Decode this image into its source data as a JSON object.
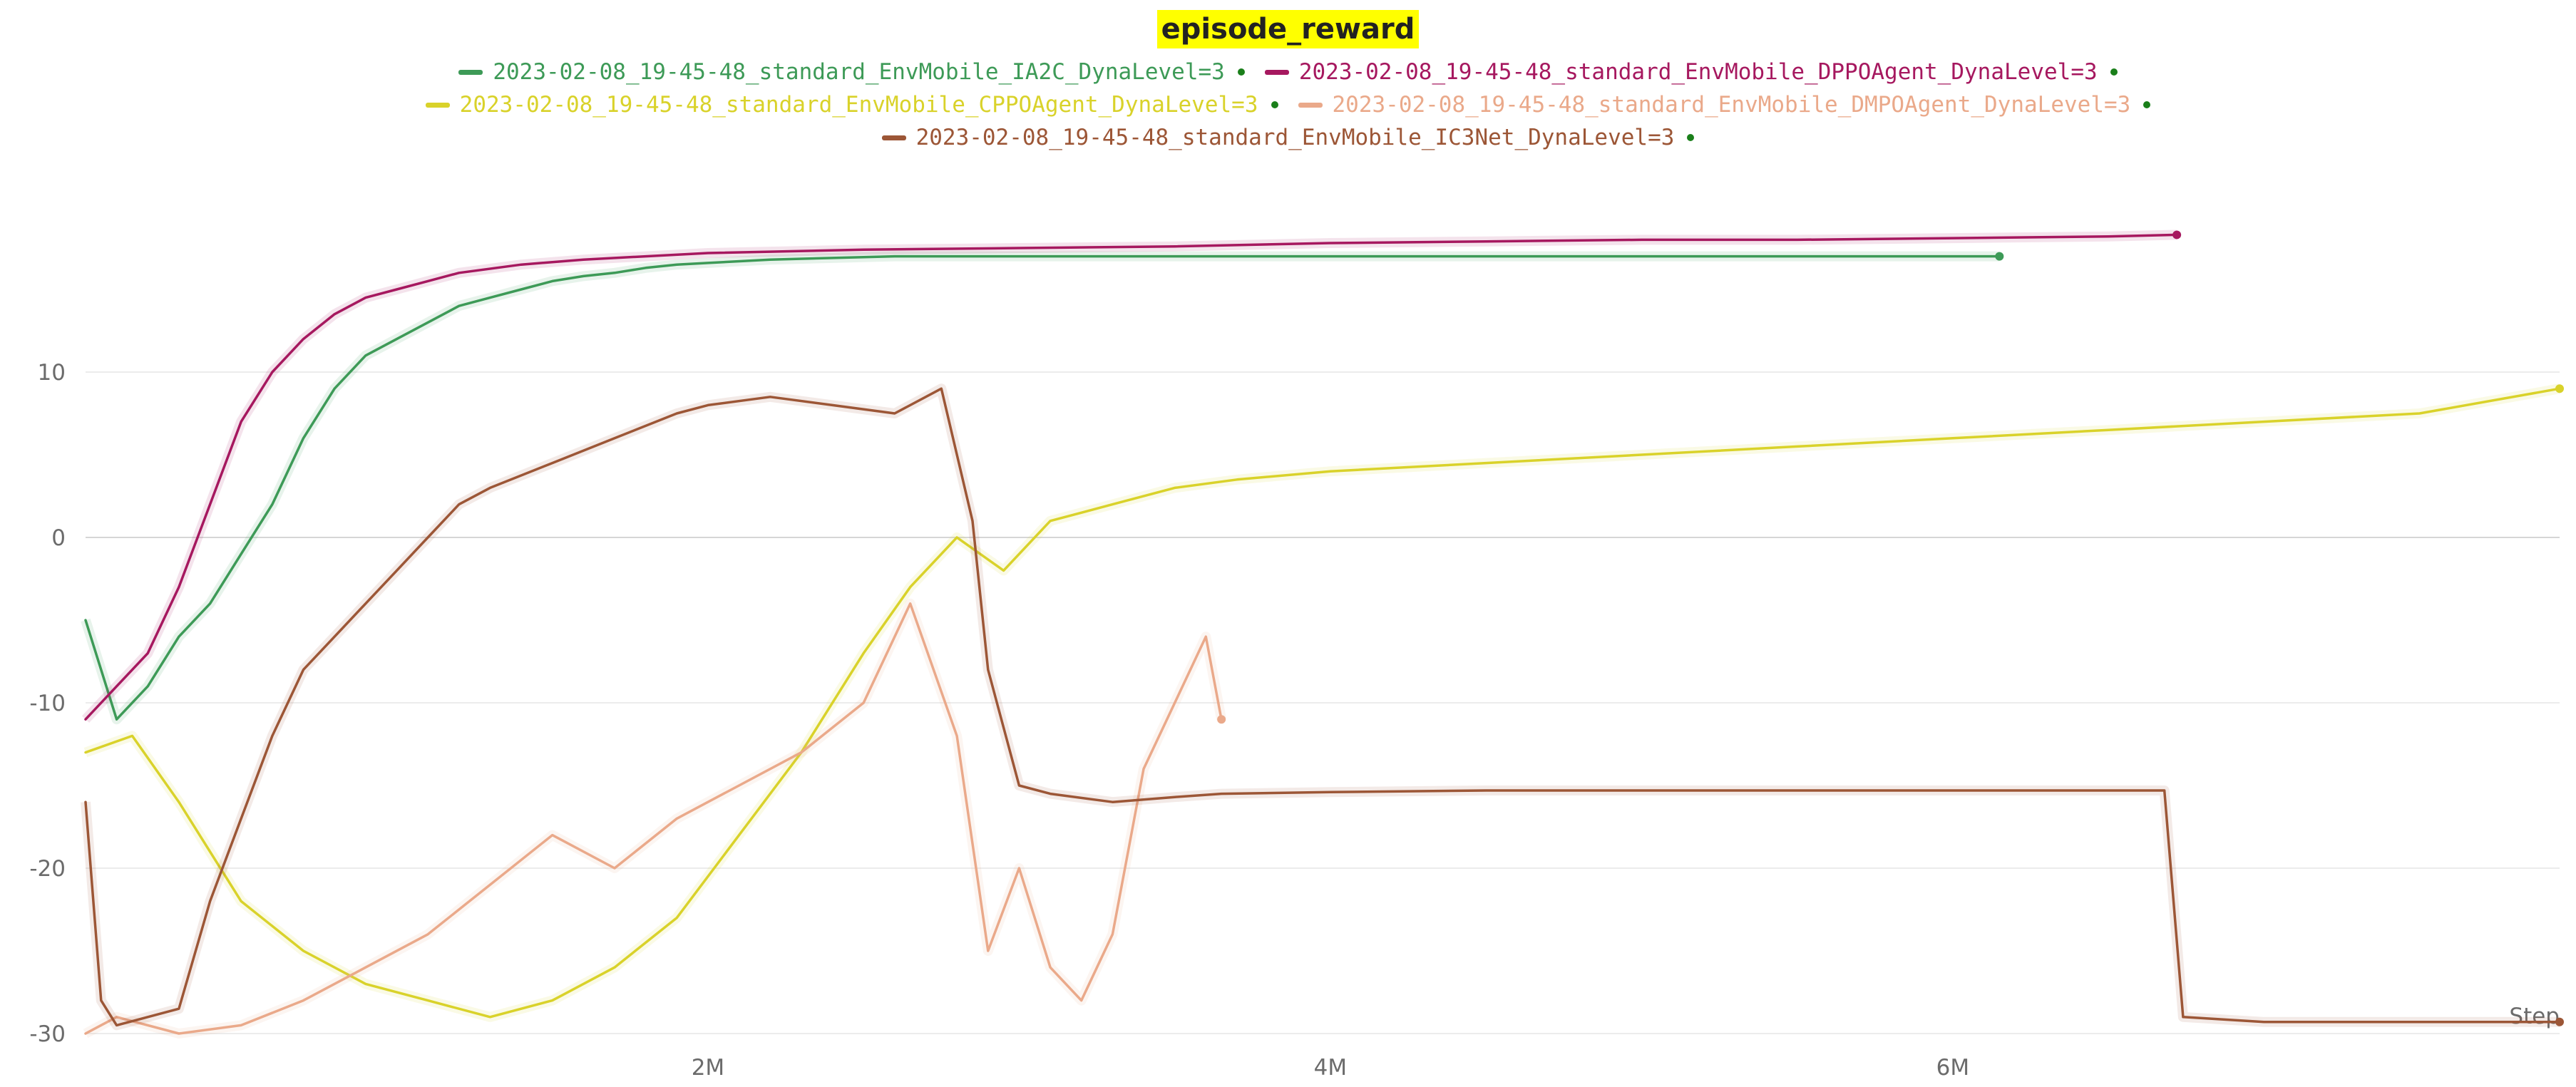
{
  "chart_data": {
    "type": "line",
    "title": "episode_reward",
    "xlabel": "Step",
    "ylabel": "",
    "xlim": [
      0,
      7950000
    ],
    "ylim": [
      -30,
      20
    ],
    "x_ticks": [
      {
        "value": 2000000,
        "label": "2M"
      },
      {
        "value": 4000000,
        "label": "4M"
      },
      {
        "value": 6000000,
        "label": "6M"
      }
    ],
    "y_ticks": [
      {
        "value": 10,
        "label": "10"
      },
      {
        "value": 0,
        "label": "0"
      },
      {
        "value": -10,
        "label": "-10"
      },
      {
        "value": -20,
        "label": "-20"
      },
      {
        "value": -30,
        "label": "-30"
      }
    ],
    "grid": true,
    "legend_position": "top-center",
    "series": [
      {
        "name": "2023-02-08_19-45-48_standard_EnvMobile_IA2C_DynaLevel=3",
        "color": "#3d9a57",
        "x": [
          0,
          100000,
          200000,
          300000,
          400000,
          500000,
          600000,
          700000,
          800000,
          900000,
          1000000,
          1100000,
          1200000,
          1300000,
          1400000,
          1500000,
          1600000,
          1700000,
          1800000,
          1900000,
          2000000,
          2200000,
          2400000,
          2600000,
          2800000,
          3000000,
          3500000,
          4000000,
          4500000,
          5000000,
          5500000,
          6000000,
          6150000
        ],
        "y": [
          -5,
          -11,
          -9,
          -6,
          -4,
          -1,
          2,
          6,
          9,
          11,
          12,
          13,
          14,
          14.5,
          15,
          15.5,
          15.8,
          16,
          16.3,
          16.5,
          16.6,
          16.8,
          16.9,
          17,
          17,
          17,
          17,
          17,
          17,
          17,
          17,
          17,
          17
        ]
      },
      {
        "name": "2023-02-08_19-45-48_standard_EnvMobile_DPPOAgent_DynaLevel=3",
        "color": "#a6185f",
        "x": [
          0,
          100000,
          200000,
          300000,
          400000,
          500000,
          600000,
          700000,
          800000,
          900000,
          1000000,
          1100000,
          1200000,
          1400000,
          1600000,
          1800000,
          2000000,
          2500000,
          3000000,
          3500000,
          4000000,
          4500000,
          5000000,
          5500000,
          6000000,
          6500000,
          6720000
        ],
        "y": [
          -11,
          -9,
          -7,
          -3,
          2,
          7,
          10,
          12,
          13.5,
          14.5,
          15,
          15.5,
          16,
          16.5,
          16.8,
          17,
          17.2,
          17.4,
          17.5,
          17.6,
          17.8,
          17.9,
          18,
          18,
          18.1,
          18.2,
          18.3
        ]
      },
      {
        "name": "2023-02-08_19-45-48_standard_EnvMobile_CPPOAgent_DynaLevel=3",
        "color": "#d9d22a",
        "x": [
          0,
          150000,
          300000,
          500000,
          700000,
          900000,
          1100000,
          1300000,
          1500000,
          1700000,
          1900000,
          2100000,
          2300000,
          2500000,
          2650000,
          2800000,
          2950000,
          3100000,
          3300000,
          3500000,
          3700000,
          4000000,
          4500000,
          5000000,
          5500000,
          6000000,
          6500000,
          7000000,
          7500000,
          7950000
        ],
        "y": [
          -13,
          -12,
          -16,
          -22,
          -25,
          -27,
          -28,
          -29,
          -28,
          -26,
          -23,
          -18,
          -13,
          -7,
          -3,
          0,
          -2,
          1,
          2,
          3,
          3.5,
          4,
          4.5,
          5,
          5.5,
          6,
          6.5,
          7,
          7.5,
          9
        ]
      },
      {
        "name": "2023-02-08_19-45-48_standard_EnvMobile_DMPOAgent_DynaLevel=3",
        "color": "#eaa98a",
        "x": [
          0,
          100000,
          300000,
          500000,
          700000,
          900000,
          1100000,
          1300000,
          1500000,
          1700000,
          1900000,
          2100000,
          2300000,
          2500000,
          2650000,
          2800000,
          2900000,
          3000000,
          3100000,
          3200000,
          3300000,
          3400000,
          3500000,
          3600000,
          3650000
        ],
        "y": [
          -30,
          -29,
          -30,
          -29.5,
          -28,
          -26,
          -24,
          -21,
          -18,
          -20,
          -17,
          -15,
          -13,
          -10,
          -4,
          -12,
          -25,
          -20,
          -26,
          -28,
          -24,
          -14,
          -10,
          -6,
          -11
        ]
      },
      {
        "name": "2023-02-08_19-45-48_standard_EnvMobile_IC3Net_DynaLevel=3",
        "color": "#9c5636",
        "x": [
          0,
          50000,
          100000,
          200000,
          300000,
          400000,
          500000,
          600000,
          700000,
          800000,
          900000,
          1000000,
          1100000,
          1200000,
          1300000,
          1500000,
          1700000,
          1900000,
          2000000,
          2200000,
          2400000,
          2600000,
          2750000,
          2850000,
          2900000,
          3000000,
          3100000,
          3300000,
          3500000,
          3650000,
          4000000,
          4500000,
          5000000,
          5500000,
          6000000,
          6500000,
          6680000,
          6740000,
          7000000,
          7500000,
          7950000
        ],
        "y": [
          -16,
          -28,
          -29.5,
          -29,
          -28.5,
          -22,
          -17,
          -12,
          -8,
          -6,
          -4,
          -2,
          0,
          2,
          3,
          4.5,
          6,
          7.5,
          8,
          8.5,
          8,
          7.5,
          9,
          1,
          -8,
          -15,
          -15.5,
          -16,
          -15.7,
          -15.5,
          -15.4,
          -15.3,
          -15.3,
          -15.3,
          -15.3,
          -15.3,
          -15.3,
          -29,
          -29.3,
          -29.3,
          -29.3
        ]
      }
    ]
  }
}
